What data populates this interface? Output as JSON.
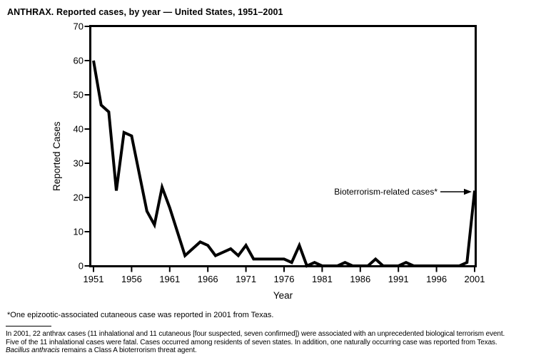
{
  "chart_data": {
    "type": "line",
    "title": "ANTHRAX. Reported cases, by year — United States, 1951–2001",
    "xlabel": "Year",
    "ylabel": "Reported Cases",
    "annotation": "Bioterrorism-related cases*",
    "line_color": "#000000",
    "ylim": [
      0,
      70
    ],
    "xlim": [
      1951,
      2001
    ],
    "grid": false,
    "legend": "none",
    "y_ticks": [
      0,
      10,
      20,
      30,
      40,
      50,
      60,
      70
    ],
    "x_ticks": [
      1951,
      1956,
      1961,
      1966,
      1971,
      1976,
      1981,
      1986,
      1991,
      1996,
      2001
    ],
    "x": [
      1951,
      1952,
      1953,
      1954,
      1955,
      1956,
      1957,
      1958,
      1959,
      1960,
      1961,
      1962,
      1963,
      1964,
      1965,
      1966,
      1967,
      1968,
      1969,
      1970,
      1971,
      1972,
      1973,
      1974,
      1975,
      1976,
      1977,
      1978,
      1979,
      1980,
      1981,
      1982,
      1983,
      1984,
      1985,
      1986,
      1987,
      1988,
      1989,
      1990,
      1991,
      1992,
      1993,
      1994,
      1995,
      1996,
      1997,
      1998,
      1999,
      2000,
      2001
    ],
    "values": [
      60,
      47,
      45,
      22,
      39,
      38,
      27,
      16,
      12,
      23,
      17,
      10,
      3,
      5,
      7,
      6,
      3,
      4,
      5,
      3,
      6,
      2,
      2,
      2,
      2,
      2,
      1,
      6,
      0,
      1,
      0,
      0,
      0,
      1,
      0,
      0,
      0,
      2,
      0,
      0,
      0,
      1,
      0,
      0,
      0,
      0,
      0,
      0,
      0,
      1,
      22
    ]
  },
  "footnotes": {
    "note1": "*One epizootic-associated cutaneous case was reported in 2001 from Texas.",
    "para_line1": "In 2001, 22 anthrax cases (11 inhalational and 11 cutaneous [four suspected, seven confirmed]) were associated with an unprecedented biological terrorism event.",
    "para_line2": "Five of the 11 inhalational cases were fatal. Cases occurred among residents of seven states. In addition, one naturally occurring case was reported from Texas.",
    "para_line3_italic": "Bacillus anthracis",
    "para_line3_rest": " remains a Class A bioterrorism threat agent."
  }
}
